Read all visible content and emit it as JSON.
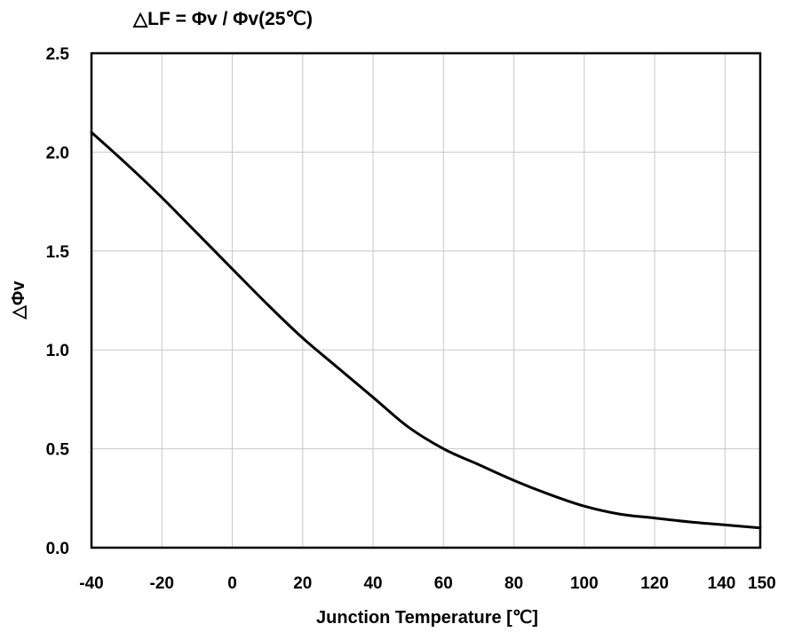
{
  "chart_data": {
    "type": "line",
    "title": "△LF = Φv / Φv(25℃)",
    "xlabel": "Junction Temperature [℃]",
    "ylabel": "△Φv",
    "xlim": [
      -40,
      150
    ],
    "ylim": [
      0,
      2.5
    ],
    "xticks": [
      -40,
      -20,
      0,
      20,
      40,
      60,
      80,
      100,
      120,
      140,
      150
    ],
    "xtick_labels": [
      "-40",
      "-20",
      "0",
      "20",
      "40",
      "60",
      "80",
      "100",
      "120",
      "140",
      "150"
    ],
    "yticks": [
      0,
      0.5,
      1.0,
      1.5,
      2.0,
      2.5
    ],
    "ytick_labels": [
      "0.0",
      "0.5",
      "1.0",
      "1.5",
      "2.0",
      "2.5"
    ],
    "grid": true,
    "series": [
      {
        "x": [
          -40,
          -30,
          -20,
          -10,
          0,
          10,
          20,
          30,
          40,
          50,
          60,
          70,
          80,
          90,
          100,
          110,
          120,
          130,
          140,
          150
        ],
        "y": [
          2.1,
          1.94,
          1.77,
          1.59,
          1.41,
          1.23,
          1.06,
          0.91,
          0.76,
          0.61,
          0.5,
          0.42,
          0.34,
          0.27,
          0.21,
          0.17,
          0.15,
          0.13,
          0.115,
          0.1
        ]
      }
    ]
  }
}
